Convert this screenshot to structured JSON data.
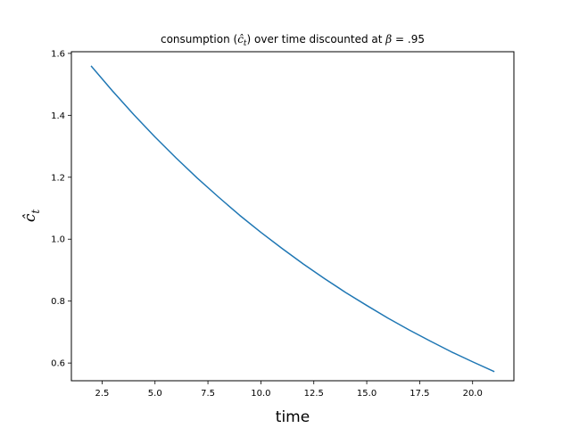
{
  "chart_data": {
    "type": "line",
    "title_prefix": "consumption (",
    "title_symbol": "ĉ",
    "title_subscript": "t",
    "title_middle": ") over time discounted at ",
    "title_beta": "β",
    "title_suffix": " = .95",
    "xlabel": "time",
    "ylabel_symbol": "ĉ",
    "ylabel_subscript": "t",
    "xlim": [
      1.05,
      21.95
    ],
    "ylim": [
      0.5428,
      1.6054
    ],
    "xticks": [
      2.5,
      5.0,
      7.5,
      10.0,
      12.5,
      15.0,
      17.5,
      20.0
    ],
    "xtick_labels": [
      "2.5",
      "5.0",
      "7.5",
      "10.0",
      "12.5",
      "15.0",
      "17.5",
      "20.0"
    ],
    "yticks": [
      0.6,
      0.8,
      1.0,
      1.2,
      1.4,
      1.6
    ],
    "ytick_labels": [
      "0.6",
      "0.8",
      "1.0",
      "1.2",
      "1.4",
      "1.6"
    ],
    "grid": false,
    "line_color": "#1f77b4",
    "series": [
      {
        "x": [
          2,
          3,
          4,
          5,
          6,
          7,
          8,
          9,
          10,
          11,
          12,
          13,
          14,
          15,
          16,
          17,
          18,
          19,
          20,
          21
        ],
        "values": [
          1.558,
          1.478,
          1.402,
          1.33,
          1.262,
          1.197,
          1.136,
          1.077,
          1.022,
          0.97,
          0.92,
          0.873,
          0.828,
          0.786,
          0.745,
          0.707,
          0.671,
          0.636,
          0.604,
          0.573
        ]
      }
    ]
  }
}
